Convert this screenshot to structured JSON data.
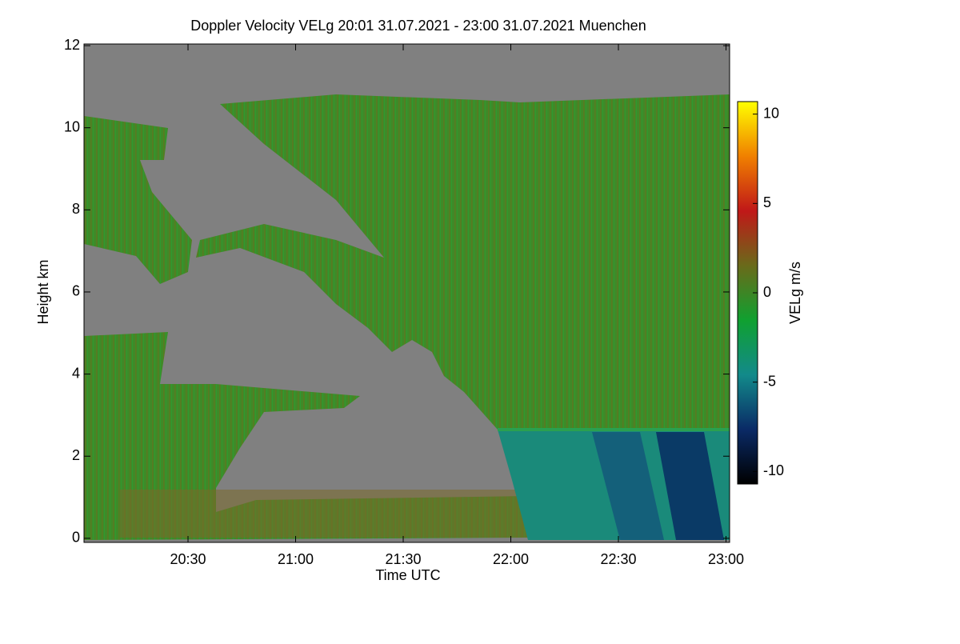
{
  "chart_data": {
    "type": "heatmap",
    "title": "Doppler Velocity VELg   20:01 31.07.2021 - 23:00 31.07.2021 Muenchen",
    "x_label": "Time UTC",
    "y_label": "Height km",
    "colorbar_label": "VELg m/s",
    "xlim": [
      1201,
      1381
    ],
    "xticks": [
      {
        "value": 1230,
        "label": "20:30"
      },
      {
        "value": 1260,
        "label": "21:00"
      },
      {
        "value": 1290,
        "label": "21:30"
      },
      {
        "value": 1320,
        "label": "22:00"
      },
      {
        "value": 1350,
        "label": "22:30"
      },
      {
        "value": 1380,
        "label": "23:00"
      }
    ],
    "ylim": [
      -0.1,
      12.04
    ],
    "yticks": [
      0,
      2,
      4,
      6,
      8,
      10,
      12
    ],
    "zlim": [
      -10.7,
      10.7
    ],
    "zticks": [
      -10,
      -5,
      0,
      5,
      10
    ],
    "colormap": [
      "#000000",
      "#0a2a66",
      "#128a8a",
      "#10a030",
      "#6a6a1a",
      "#c01818",
      "#f08000",
      "#ffff00"
    ]
  }
}
